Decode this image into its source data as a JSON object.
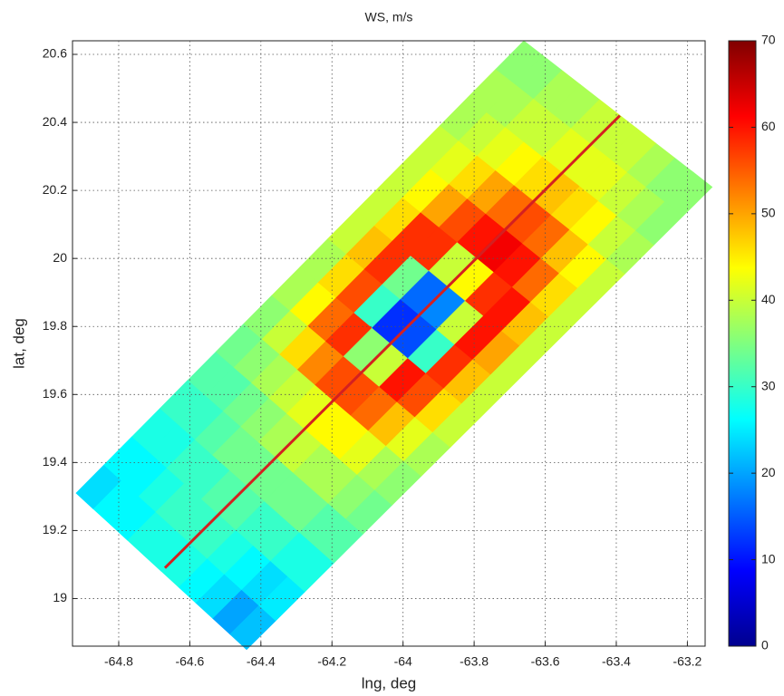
{
  "chart_data": {
    "type": "heatmap",
    "title": "WS, m/s",
    "x_label": "lng, deg",
    "y_label": "lat, deg",
    "xlim": [
      -64.93,
      -63.15
    ],
    "ylim": [
      18.86,
      20.64
    ],
    "xticks": [
      -64.8,
      -64.6,
      -64.4,
      -64.2,
      -64,
      -63.8,
      -63.6,
      -63.4,
      -63.2
    ],
    "yticks": [
      19,
      19.2,
      19.4,
      19.6,
      19.8,
      20,
      20.2,
      20.4,
      20.6
    ],
    "grid": true,
    "swath_corners": {
      "lon": [
        -64.44,
        -63.13,
        -63.66,
        -64.92
      ],
      "lat": [
        18.85,
        20.21,
        20.64,
        19.31
      ]
    },
    "values": [
      [
        22,
        20,
        24,
        26,
        28,
        28,
        28,
        26,
        26,
        24
      ],
      [
        25,
        24,
        26,
        28,
        30,
        30,
        30,
        28,
        26,
        26
      ],
      [
        28,
        28,
        30,
        30,
        32,
        32,
        30,
        30,
        28,
        28
      ],
      [
        32,
        32,
        34,
        34,
        34,
        34,
        34,
        32,
        30,
        30
      ],
      [
        34,
        36,
        38,
        38,
        40,
        38,
        36,
        34,
        32,
        32
      ],
      [
        36,
        38,
        42,
        44,
        44,
        42,
        40,
        38,
        36,
        34
      ],
      [
        38,
        42,
        48,
        54,
        56,
        56,
        52,
        46,
        40,
        36
      ],
      [
        40,
        46,
        56,
        60,
        40,
        36,
        58,
        54,
        44,
        38
      ],
      [
        40,
        48,
        58,
        30,
        14,
        12,
        30,
        56,
        46,
        38
      ],
      [
        40,
        50,
        60,
        40,
        18,
        16,
        34,
        58,
        48,
        40
      ],
      [
        40,
        48,
        60,
        58,
        44,
        40,
        58,
        58,
        46,
        40
      ],
      [
        40,
        46,
        54,
        60,
        62,
        60,
        56,
        50,
        44,
        40
      ],
      [
        40,
        44,
        48,
        54,
        56,
        54,
        50,
        46,
        42,
        40
      ],
      [
        38,
        40,
        44,
        46,
        48,
        46,
        44,
        42,
        40,
        38
      ],
      [
        36,
        38,
        40,
        42,
        42,
        42,
        40,
        40,
        38,
        38
      ],
      [
        36,
        36,
        38,
        40,
        40,
        40,
        38,
        38,
        36,
        36
      ]
    ],
    "colormap": "jet",
    "clim": [
      0,
      70
    ],
    "cticks": [
      0,
      10,
      20,
      30,
      40,
      50,
      60,
      70
    ],
    "series": [
      {
        "x": [
          -64.67,
          -63.39
        ],
        "y": [
          19.09,
          20.42
        ],
        "color": "#d42020"
      }
    ]
  }
}
